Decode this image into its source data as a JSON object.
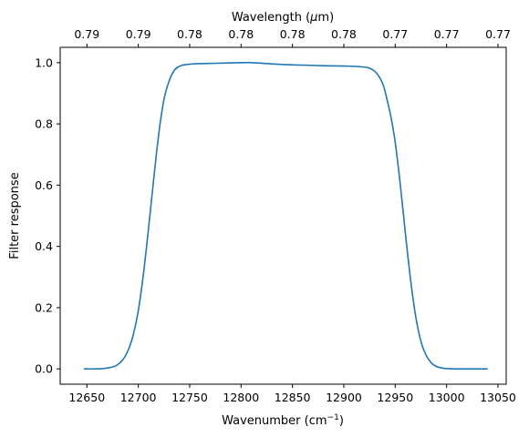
{
  "chart_data": {
    "type": "line",
    "xlabel": "Wavenumber (cm",
    "xlabel_sup": "−1",
    "xlabel_close": ")",
    "x2label": "Wavelength (",
    "x2label_mu": "μ",
    "x2label_unit": "m)",
    "ylabel": "Filter response",
    "xlim": [
      12624,
      13058
    ],
    "ylim": [
      -0.05,
      1.05
    ],
    "grid": false,
    "line_color": "#1f77b4",
    "x_ticks": [
      12650,
      12700,
      12750,
      12800,
      12850,
      12900,
      12950,
      13000,
      13050
    ],
    "x_tick_labels": [
      "12650",
      "12700",
      "12750",
      "12800",
      "12850",
      "12900",
      "12950",
      "13000",
      "13050"
    ],
    "y_ticks": [
      0.0,
      0.2,
      0.4,
      0.6,
      0.8,
      1.0
    ],
    "y_tick_labels": [
      "0.0",
      "0.2",
      "0.4",
      "0.6",
      "0.8",
      "1.0"
    ],
    "top_ticks": [
      12650,
      12700,
      12750,
      12800,
      12850,
      12900,
      12950,
      13000,
      13050
    ],
    "top_tick_labels": [
      "0.79",
      "0.79",
      "0.78",
      "0.78",
      "0.78",
      "0.78",
      "0.77",
      "0.77",
      "0.77"
    ],
    "series": [
      {
        "x": [
          12647,
          12660,
          12670,
          12678,
          12685,
          12690,
          12695,
          12700,
          12705,
          12710,
          12715,
          12720,
          12725,
          12730,
          12735,
          12740,
          12745,
          12750,
          12760,
          12775,
          12800,
          12810,
          12825,
          12840,
          12860,
          12880,
          12900,
          12915,
          12925,
          12932,
          12938,
          12942,
          12946,
          12950,
          12955,
          12960,
          12965,
          12970,
          12975,
          12980,
          12985,
          12990,
          12995,
          13000,
          13010,
          13025,
          13040
        ],
        "y": [
          0.0,
          0.0,
          0.003,
          0.01,
          0.03,
          0.06,
          0.11,
          0.19,
          0.31,
          0.46,
          0.62,
          0.77,
          0.88,
          0.94,
          0.975,
          0.988,
          0.993,
          0.995,
          0.997,
          0.998,
          1.0,
          1.0,
          0.997,
          0.994,
          0.992,
          0.99,
          0.989,
          0.987,
          0.982,
          0.965,
          0.93,
          0.88,
          0.82,
          0.74,
          0.6,
          0.44,
          0.29,
          0.17,
          0.09,
          0.045,
          0.02,
          0.008,
          0.003,
          0.001,
          0.0,
          0.0,
          0.0
        ]
      }
    ]
  }
}
